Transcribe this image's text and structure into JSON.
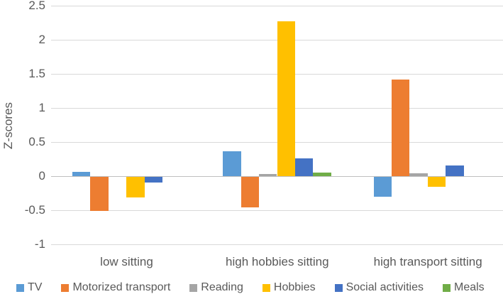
{
  "chart_data": {
    "type": "bar",
    "title": "",
    "xlabel": "",
    "ylabel": "Z-scores",
    "ylim": [
      -1,
      2.5
    ],
    "yticks": [
      2.5,
      2,
      1.5,
      1,
      0.5,
      0,
      -0.5,
      -1
    ],
    "grid": true,
    "legend_position": "bottom",
    "categories": [
      "low sitting",
      "high hobbies sitting",
      "high transport sitting"
    ],
    "series": [
      {
        "name": "TV",
        "color": "#5B9BD5",
        "values": [
          0.06,
          0.36,
          -0.3
        ]
      },
      {
        "name": "Motorized transport",
        "color": "#ED7D31",
        "values": [
          -0.51,
          -0.46,
          1.42
        ]
      },
      {
        "name": "Reading",
        "color": "#A5A5A5",
        "values": [
          -0.01,
          0.03,
          0.04
        ]
      },
      {
        "name": "Hobbies",
        "color": "#FFC000",
        "values": [
          -0.31,
          2.27,
          -0.16
        ]
      },
      {
        "name": "Social activities",
        "color": "#4472C4",
        "values": [
          -0.09,
          0.26,
          0.16
        ]
      },
      {
        "name": "Meals",
        "color": "#70AD47",
        "values": [
          -0.01,
          0.05,
          -0.01
        ]
      }
    ]
  },
  "colors": {
    "gridline": "#D9D9D9",
    "zero_axis_line": "#BFBFBF",
    "tick_text": "#595959"
  }
}
